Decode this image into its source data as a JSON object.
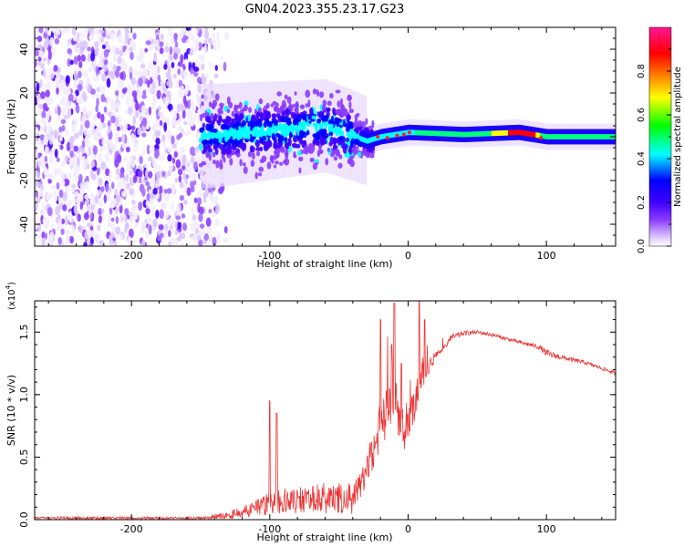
{
  "figure": {
    "title": "GN04.2023.355.23.17.G23"
  },
  "chart_data": [
    {
      "type": "heatmap",
      "title": "GN04.2023.355.23.17.G23",
      "xlabel": "Height of straight line (km)",
      "ylabel": "Frequency (Hz)",
      "xlim": [
        -270,
        150
      ],
      "ylim": [
        -50,
        50
      ],
      "xticks": [
        -200,
        -100,
        0,
        100
      ],
      "yticks": [
        -40,
        -20,
        0,
        20,
        40
      ],
      "colorbar": {
        "label": "Normalized spectral amplitude",
        "ticks": [
          "0.0",
          "0.2",
          "0.4",
          "0.6",
          "0.8"
        ],
        "range": [
          0,
          1
        ],
        "colormap": [
          "#ffffff",
          "#dcc8ff",
          "#8c3cff",
          "#3f00ff",
          "#0000ff",
          "#00ffff",
          "#00ff00",
          "#ffff00",
          "#ff7f00",
          "#ff0000",
          "#ff1493"
        ]
      },
      "ridge": {
        "description_points_km_hz": [
          [
            -150,
            0
          ],
          [
            -60,
            5
          ],
          [
            -30,
            -2
          ],
          [
            -20,
            0
          ],
          [
            0,
            2
          ],
          [
            40,
            1
          ],
          [
            80,
            2
          ],
          [
            100,
            0
          ],
          [
            150,
            0
          ]
        ]
      },
      "noise_region_km": [
        -270,
        -135
      ]
    },
    {
      "type": "line",
      "xlabel": "Height of straight line (km)",
      "ylabel": "SNR (10 * v/v)",
      "multiplier_label": "(x10",
      "multiplier_exp": "4",
      "multiplier_close": ")",
      "xlim": [
        -270,
        150
      ],
      "ylim": [
        0,
        1.75
      ],
      "xticks": [
        -200,
        -100,
        0,
        100
      ],
      "yticks": [
        "0.0",
        "0.5",
        "1.0",
        "1.5"
      ],
      "ytick_values": [
        0,
        0.5,
        1.0,
        1.5
      ],
      "series": [
        {
          "color": "#ee3333",
          "envelope_x": [
            -270,
            -150,
            -130,
            -115,
            -100,
            -80,
            -60,
            -40,
            -30,
            -25,
            -20,
            -15,
            -10,
            -5,
            0,
            5,
            10,
            20,
            30,
            40,
            50,
            60,
            80,
            95,
            100,
            110,
            130,
            150
          ],
          "envelope_y": [
            0.02,
            0.02,
            0.06,
            0.12,
            0.2,
            0.22,
            0.25,
            0.25,
            0.5,
            0.7,
            0.9,
            1.1,
            1.15,
            0.9,
            0.95,
            1.1,
            1.2,
            1.35,
            1.45,
            1.49,
            1.5,
            1.48,
            1.42,
            1.38,
            1.33,
            1.3,
            1.25,
            1.17
          ],
          "spread_y": [
            0.01,
            0.01,
            0.02,
            0.06,
            0.12,
            0.15,
            0.15,
            0.14,
            0.2,
            0.25,
            0.3,
            0.35,
            0.3,
            0.3,
            0.3,
            0.25,
            0.15,
            0.06,
            0.03,
            0.02,
            0.015,
            0.015,
            0.015,
            0.02,
            0.03,
            0.02,
            0.015,
            0.015
          ],
          "peaks": [
            [
              -100,
              0.95
            ],
            [
              -95,
              0.85
            ],
            [
              -20,
              1.6
            ],
            [
              -12,
              1.4
            ],
            [
              -10,
              1.73
            ],
            [
              -5,
              1.25
            ],
            [
              8,
              1.75
            ],
            [
              12,
              1.6
            ]
          ]
        }
      ]
    }
  ]
}
